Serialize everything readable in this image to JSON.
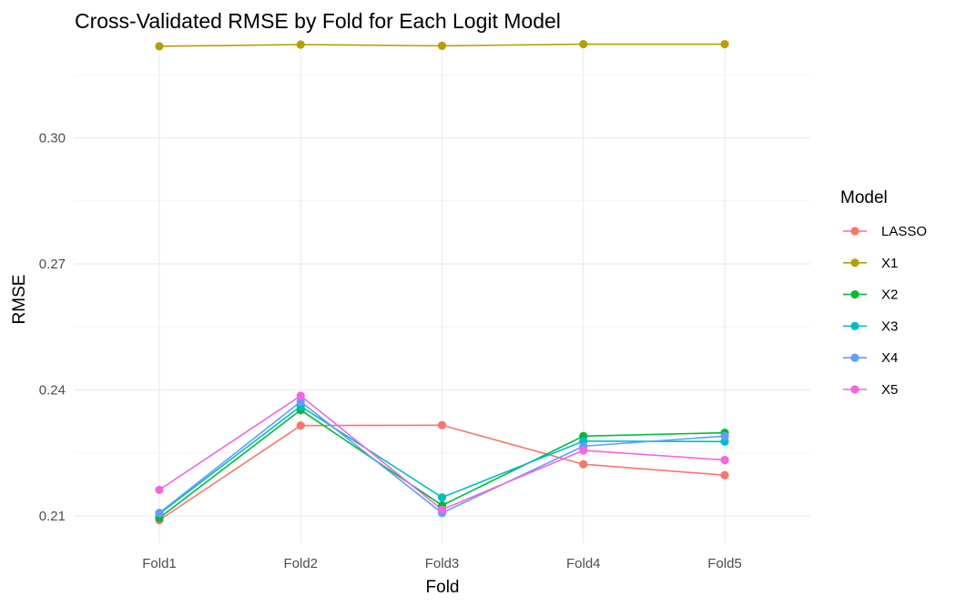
{
  "chart_data": {
    "type": "line",
    "title": "Cross-Validated RMSE by Fold for Each Logit Model",
    "xlabel": "Fold",
    "ylabel": "RMSE",
    "categories": [
      "Fold1",
      "Fold2",
      "Fold3",
      "Fold4",
      "Fold5"
    ],
    "ylim": [
      0.2035,
      0.3235
    ],
    "y_ticks": [
      0.21,
      0.24,
      0.27,
      0.3
    ],
    "y_tick_labels": [
      "0.21",
      "0.24",
      "0.27",
      "0.30"
    ],
    "grid": true,
    "legend_title": "Model",
    "legend_position": "right",
    "series": [
      {
        "name": "LASSO",
        "color": "#F8766D",
        "values": [
          0.209,
          0.2315,
          0.2316,
          0.2223,
          0.2197
        ]
      },
      {
        "name": "X1",
        "color": "#B79F00",
        "values": [
          0.3218,
          0.3222,
          0.3219,
          0.3223,
          0.3223
        ]
      },
      {
        "name": "X2",
        "color": "#00BA38",
        "values": [
          0.2095,
          0.2352,
          0.2125,
          0.229,
          0.2298
        ]
      },
      {
        "name": "X3",
        "color": "#00BFC4",
        "values": [
          0.2105,
          0.2361,
          0.2144,
          0.2278,
          0.2277
        ]
      },
      {
        "name": "X4",
        "color": "#619CFF",
        "values": [
          0.2107,
          0.2372,
          0.2107,
          0.2266,
          0.229
        ]
      },
      {
        "name": "X5",
        "color": "#F564E3",
        "values": [
          0.2162,
          0.2386,
          0.2115,
          0.2256,
          0.2233
        ]
      }
    ]
  }
}
